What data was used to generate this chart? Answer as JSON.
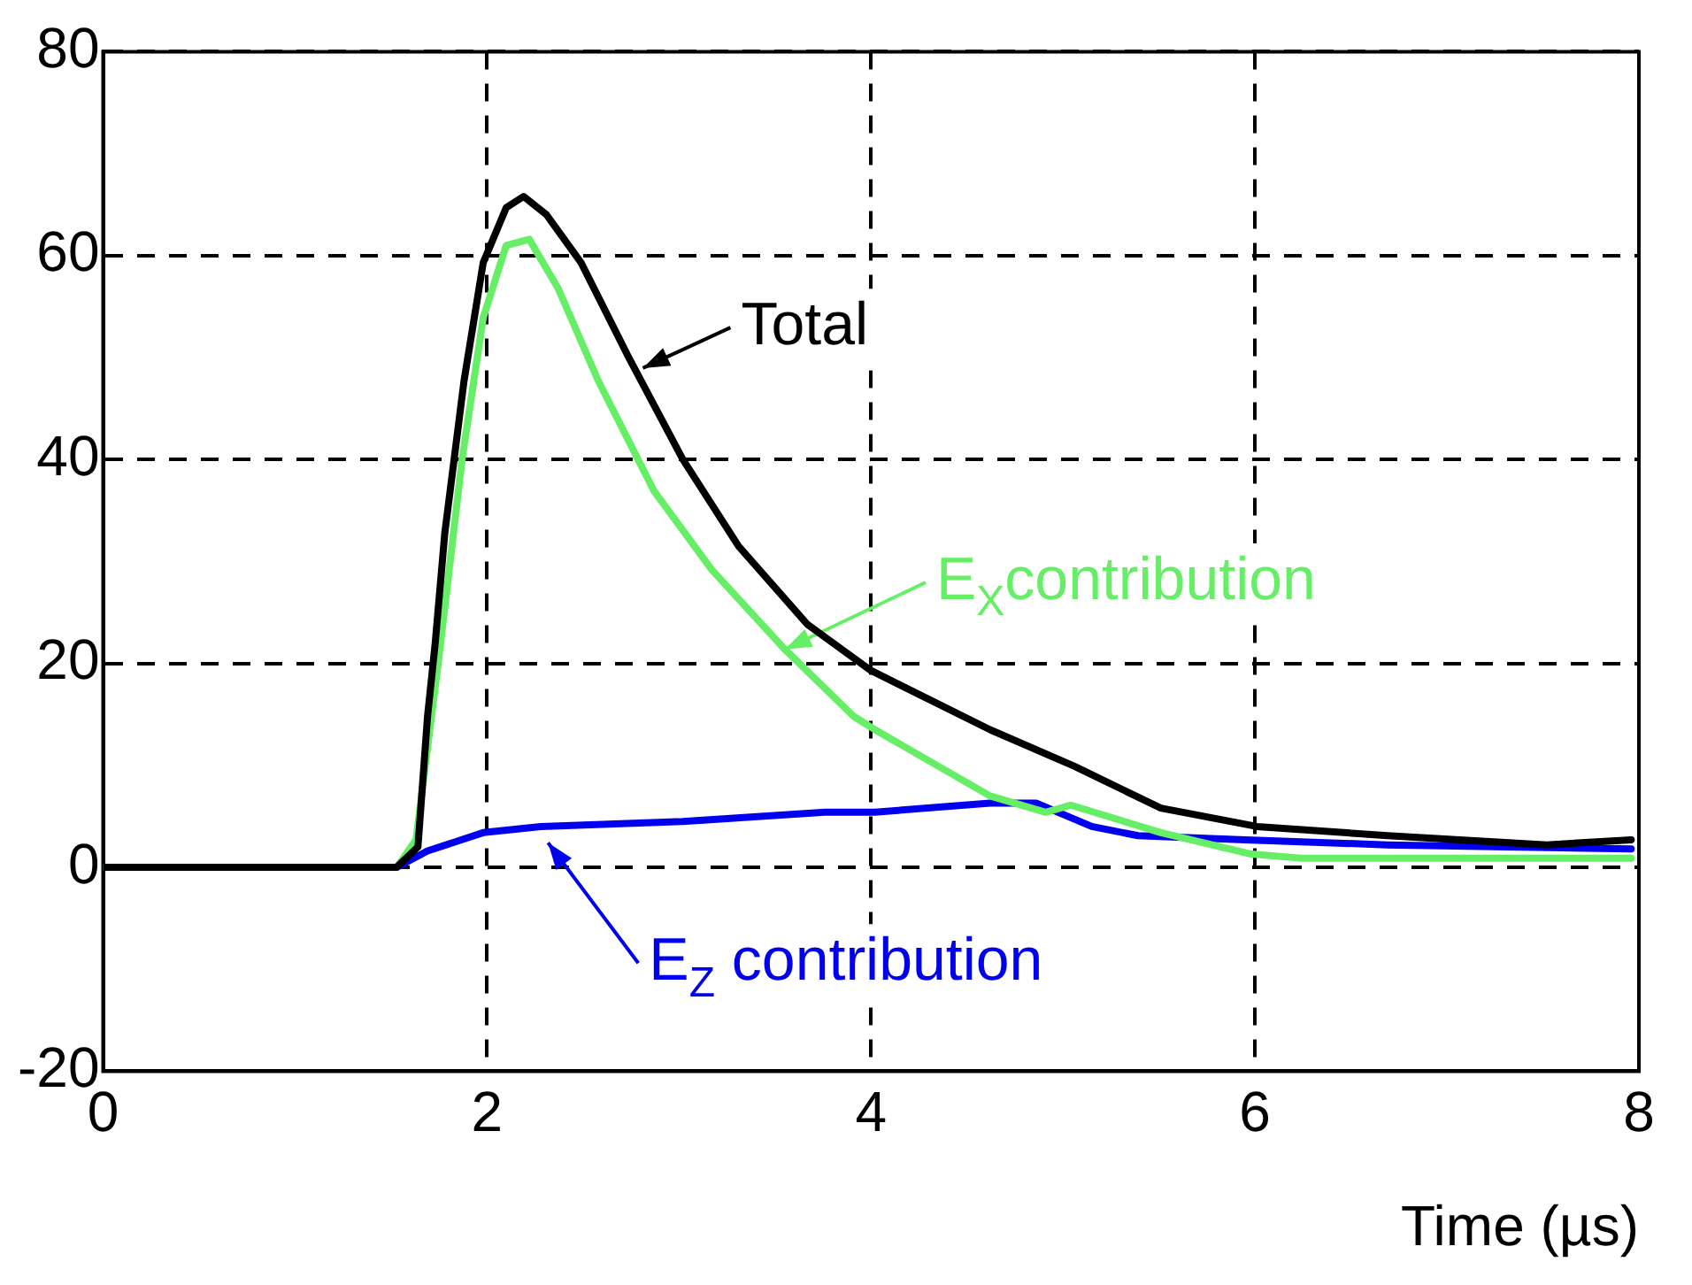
{
  "chart_data": {
    "type": "line",
    "xlabel": "Time (µs)",
    "xlim": [
      0,
      8
    ],
    "xticks": [
      0,
      2,
      4,
      6,
      8
    ],
    "ylim": [
      -20,
      80
    ],
    "yticks": [
      -20,
      0,
      20,
      40,
      60,
      80
    ],
    "grid": true,
    "legend": false,
    "marker": "none",
    "line_style": "solid",
    "series": [
      {
        "color": "#000000",
        "x": [
          0,
          1.53,
          1.64,
          1.69,
          1.73,
          1.78,
          1.88,
          1.98,
          2.1,
          2.19,
          2.31,
          2.49,
          2.73,
          3.02,
          3.31,
          3.67,
          4,
          4.62,
          5.06,
          5.51,
          6.01,
          6.69,
          7.52,
          7.96
        ],
        "values": [
          0,
          0,
          2,
          14.8,
          22,
          32.8,
          47.7,
          59.3,
          64.7,
          65.8,
          64,
          59.3,
          50.3,
          40,
          31.5,
          23.8,
          19.3,
          13.5,
          9.9,
          5.8,
          4,
          3.1,
          2.2,
          2.7
        ]
      },
      {
        "color": "#66ee66",
        "x": [
          0,
          1.53,
          1.63,
          1.75,
          1.87,
          1.98,
          2.1,
          2.22,
          2.37,
          2.58,
          2.87,
          3.17,
          3.55,
          3.91,
          4.02,
          4.62,
          4.91,
          5.04,
          5.51,
          5.98,
          6.24,
          7.96
        ],
        "values": [
          0,
          0,
          2.7,
          20.7,
          40,
          53.9,
          61,
          61.6,
          56.8,
          47.7,
          36.9,
          29.2,
          21.4,
          14.8,
          13.5,
          7,
          5.4,
          6.1,
          3.4,
          1.3,
          0.9,
          0.9
        ]
      },
      {
        "color": "#0000ee",
        "x": [
          0,
          1.53,
          1.69,
          1.98,
          2.28,
          3.02,
          3.76,
          4.02,
          4.62,
          4.86,
          5.15,
          5.39,
          5.95,
          6.69,
          7.96
        ],
        "values": [
          0,
          0,
          1.6,
          3.4,
          4,
          4.5,
          5.4,
          5.4,
          6.3,
          6.3,
          4,
          3.1,
          2.7,
          2.2,
          1.8
        ]
      }
    ],
    "annotations": [
      {
        "text": "Total",
        "x": 2.77,
        "y": 48.6
      },
      {
        "text": "E$_{X}$contribution",
        "x": 3.51,
        "y": 21
      },
      {
        "text": "E$_{Z}$ contribution",
        "x": 2.29,
        "y": 3.1
      }
    ]
  }
}
